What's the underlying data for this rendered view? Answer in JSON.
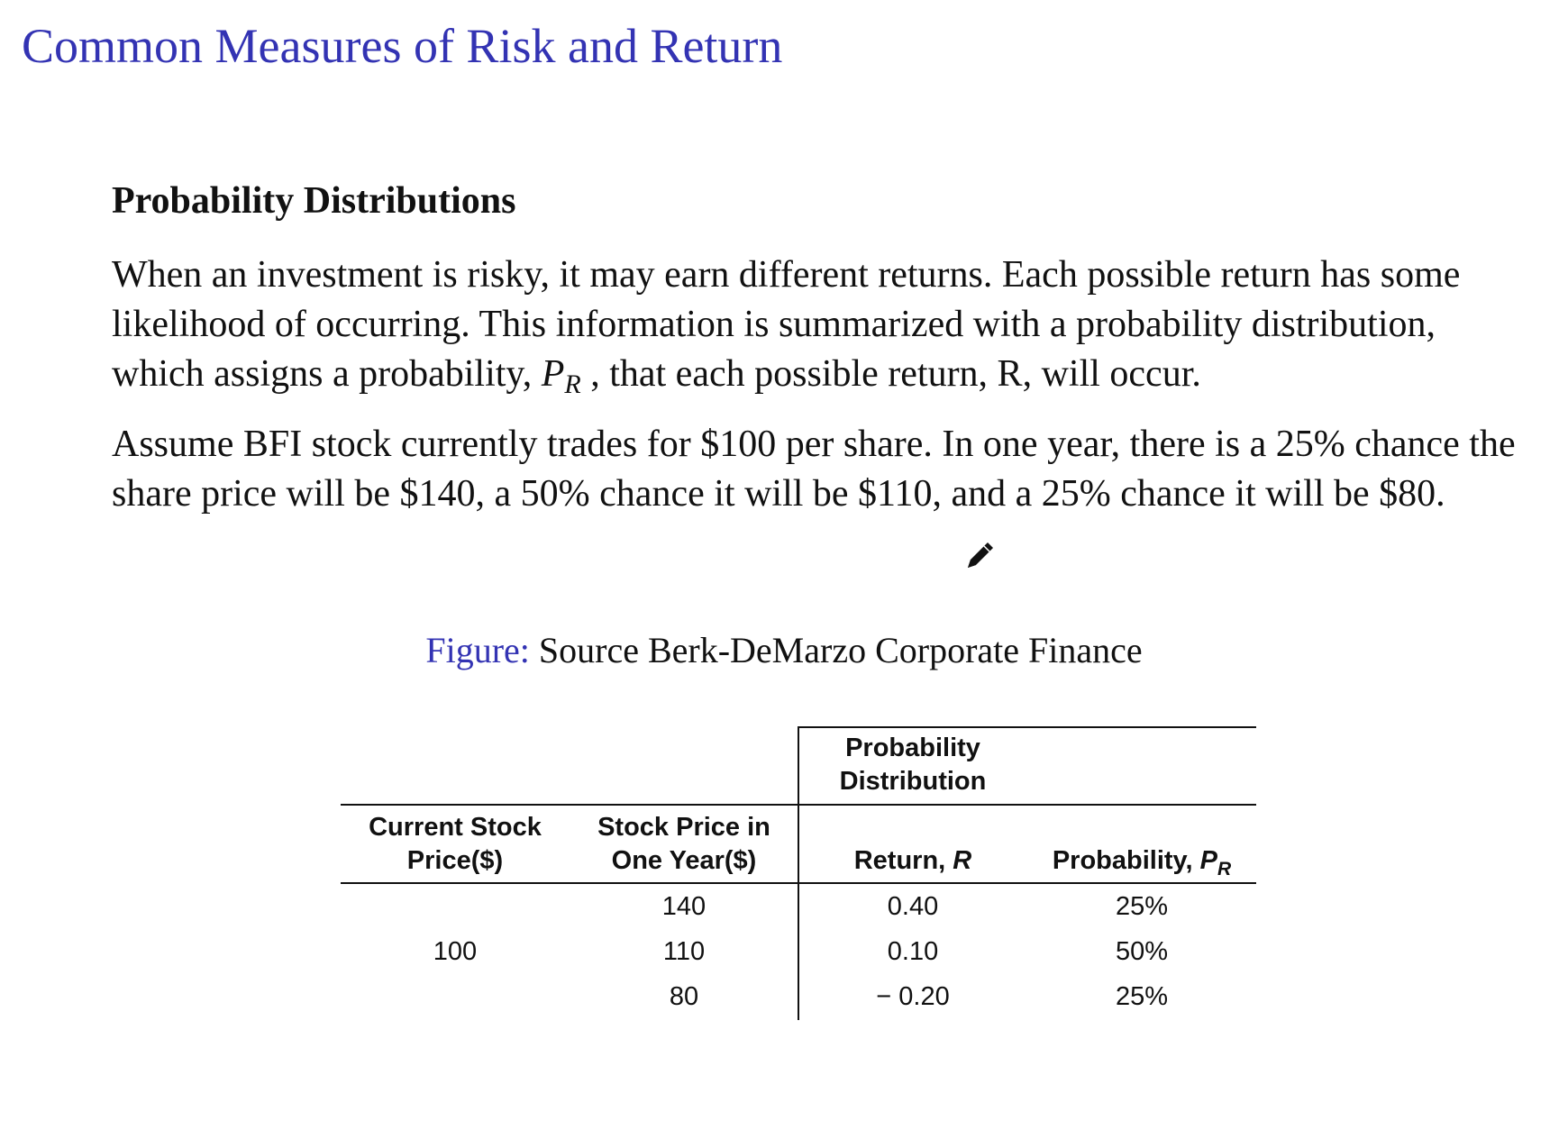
{
  "slide": {
    "title": "Common Measures of Risk and Return"
  },
  "section": {
    "heading": "Probability Distributions",
    "paragraph1_part1": "When an investment is risky, it may earn different returns. Each possible return has some likelihood of occurring. This information is summarized with a probability distribution, which assigns a probability, ",
    "paragraph1_symbol": "P",
    "paragraph1_subscript": "R",
    "paragraph1_part2": " , that each possible return, R, will occur.",
    "paragraph2": "Assume BFI stock currently trades for $100 per share. In one year, there is a 25% chance the share price will be $140, a 50% chance it will be $110, and a 25% chance it will be $80."
  },
  "annotation": {
    "icon": "pencil-icon"
  },
  "figure": {
    "label": "Figure:",
    "caption": "Source Berk-DeMarzo Corporate Finance"
  },
  "table": {
    "group_header_line1": "Probability",
    "group_header_line2": "Distribution",
    "col_current_line1": "Current Stock",
    "col_current_line2": "Price($)",
    "col_future_line1": "Stock Price in",
    "col_future_line2": "One Year($)",
    "col_return_label": "Return, ",
    "col_return_symbol": "R",
    "col_prob_label": "Probability, ",
    "col_prob_symbol": "P",
    "col_prob_subscript": "R",
    "current_price": "100",
    "rows": [
      {
        "future_price": "140",
        "return": "0.40",
        "probability": "25%"
      },
      {
        "future_price": "110",
        "return": "0.10",
        "probability": "50%"
      },
      {
        "future_price": "80",
        "return": "− 0.20",
        "probability": "25%"
      }
    ]
  }
}
